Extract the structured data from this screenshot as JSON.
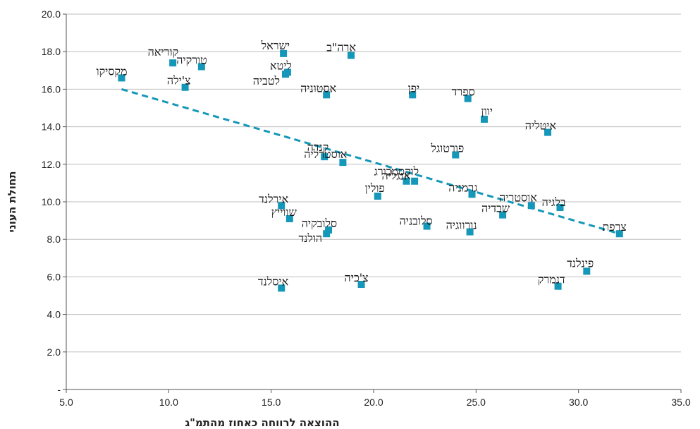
{
  "chart_data": {
    "type": "scatter",
    "xlabel": "ההוצאה לרווחה כאחוז מהתמ\"ג",
    "ylabel": "תחולת העוני",
    "xlim": [
      5,
      35
    ],
    "ylim": [
      0,
      20
    ],
    "x_ticks": [
      "5.0",
      "10.0",
      "15.0",
      "20.0",
      "25.0",
      "30.0",
      "35.0"
    ],
    "y_ticks": [
      "-",
      "2.0",
      "4.0",
      "6.0",
      "8.0",
      "10.0",
      "12.0",
      "14.0",
      "16.0",
      "18.0",
      "20.0"
    ],
    "grid": "horizontal",
    "marker_color": "#1497b8",
    "points": [
      {
        "label": "ישראל",
        "x": 15.6,
        "y": 17.9
      },
      {
        "label": "ארה\"ב",
        "x": 18.9,
        "y": 17.8
      },
      {
        "label": "קוריאה",
        "x": 10.2,
        "y": 17.4
      },
      {
        "label": "טורקיה",
        "x": 11.6,
        "y": 17.2
      },
      {
        "label": "ליטא",
        "x": 15.8,
        "y": 16.9
      },
      {
        "label": "לטביה",
        "x": 15.7,
        "y": 16.8
      },
      {
        "label": "מקסיקו",
        "x": 7.7,
        "y": 16.6
      },
      {
        "label": "צ'ילה",
        "x": 10.8,
        "y": 16.1
      },
      {
        "label": "אסטוניה",
        "x": 17.7,
        "y": 15.7
      },
      {
        "label": "יפן",
        "x": 21.9,
        "y": 15.7
      },
      {
        "label": "ספרד",
        "x": 24.6,
        "y": 15.5
      },
      {
        "label": "יוון",
        "x": 25.4,
        "y": 14.4
      },
      {
        "label": "איטליה",
        "x": 28.5,
        "y": 13.7
      },
      {
        "label": "פורטוגל",
        "x": 24.0,
        "y": 12.5
      },
      {
        "label": "קנדה",
        "x": 17.6,
        "y": 12.4
      },
      {
        "label": "אוסטרליה",
        "x": 18.5,
        "y": 12.1
      },
      {
        "label": "לוקסמבורג",
        "x": 22.0,
        "y": 11.1
      },
      {
        "label": "אנגליה",
        "x": 21.6,
        "y": 11.1
      },
      {
        "label": "גרמניה",
        "x": 24.8,
        "y": 10.4
      },
      {
        "label": "פולין",
        "x": 20.2,
        "y": 10.3
      },
      {
        "label": "אוסטריה",
        "x": 27.7,
        "y": 9.8
      },
      {
        "label": "אירלנד",
        "x": 15.5,
        "y": 9.8
      },
      {
        "label": "בלגיה",
        "x": 29.1,
        "y": 9.7
      },
      {
        "label": "שבדיה",
        "x": 26.3,
        "y": 9.3
      },
      {
        "label": "שווייץ",
        "x": 15.9,
        "y": 9.1
      },
      {
        "label": "סלובניה",
        "x": 22.6,
        "y": 8.7
      },
      {
        "label": "סלובקיה",
        "x": 17.8,
        "y": 8.5
      },
      {
        "label": "נורווגיה",
        "x": 24.7,
        "y": 8.4
      },
      {
        "label": "הולנד",
        "x": 17.7,
        "y": 8.3
      },
      {
        "label": "צרפת",
        "x": 32.0,
        "y": 8.3
      },
      {
        "label": "פינלנד",
        "x": 30.4,
        "y": 6.3
      },
      {
        "label": "צ'כיה",
        "x": 19.4,
        "y": 5.6
      },
      {
        "label": "דנמרק",
        "x": 29.0,
        "y": 5.5
      },
      {
        "label": "איסלנד",
        "x": 15.5,
        "y": 5.4
      }
    ],
    "trendline": {
      "style": "dashed",
      "x": [
        7.7,
        32.0
      ],
      "y": [
        16.0,
        8.3
      ]
    }
  }
}
